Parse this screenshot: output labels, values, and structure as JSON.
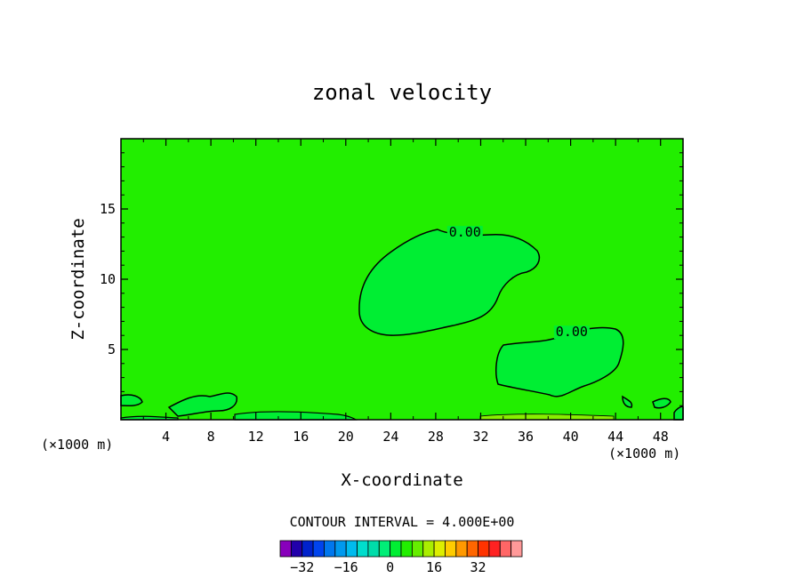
{
  "chart_data": {
    "type": "contour",
    "title": "zonal velocity",
    "xlabel": "X-coordinate",
    "ylabel": "Z-coordinate",
    "x_unit": "(×1000 m)",
    "y_unit": "(×1000 m)",
    "xlim": [
      0,
      50
    ],
    "ylim": [
      0,
      20
    ],
    "x_ticks": [
      4,
      8,
      12,
      16,
      20,
      24,
      28,
      32,
      36,
      40,
      44,
      48
    ],
    "y_ticks": [
      5,
      10,
      15
    ],
    "field_value_colors": {
      "background": "#22ee00",
      "near_zero": "#00ee33",
      "light": "#88ee00"
    },
    "contour_labels": [
      {
        "text": "0.00",
        "x": 30.6,
        "y": 13.1
      },
      {
        "text": "0.00",
        "x": 40.1,
        "y": 6.0
      }
    ],
    "contour_interval_text": "CONTOUR INTERVAL = 4.000E+00",
    "colorbar": {
      "colors": [
        "#8800bb",
        "#2200aa",
        "#0022cc",
        "#0044ee",
        "#0077ee",
        "#0099ee",
        "#00bbee",
        "#00ddcc",
        "#00ddaa",
        "#00ee77",
        "#00ee33",
        "#22ee00",
        "#66ee00",
        "#aaee00",
        "#ddee00",
        "#ffcc00",
        "#ff9900",
        "#ff6600",
        "#ff3300",
        "#ff2222",
        "#ff6666",
        "#ff9999"
      ],
      "tick_labels": [
        "−32",
        "−16",
        "0",
        "16",
        "32"
      ],
      "tick_positions": [
        2,
        6,
        10,
        14,
        18
      ]
    }
  }
}
